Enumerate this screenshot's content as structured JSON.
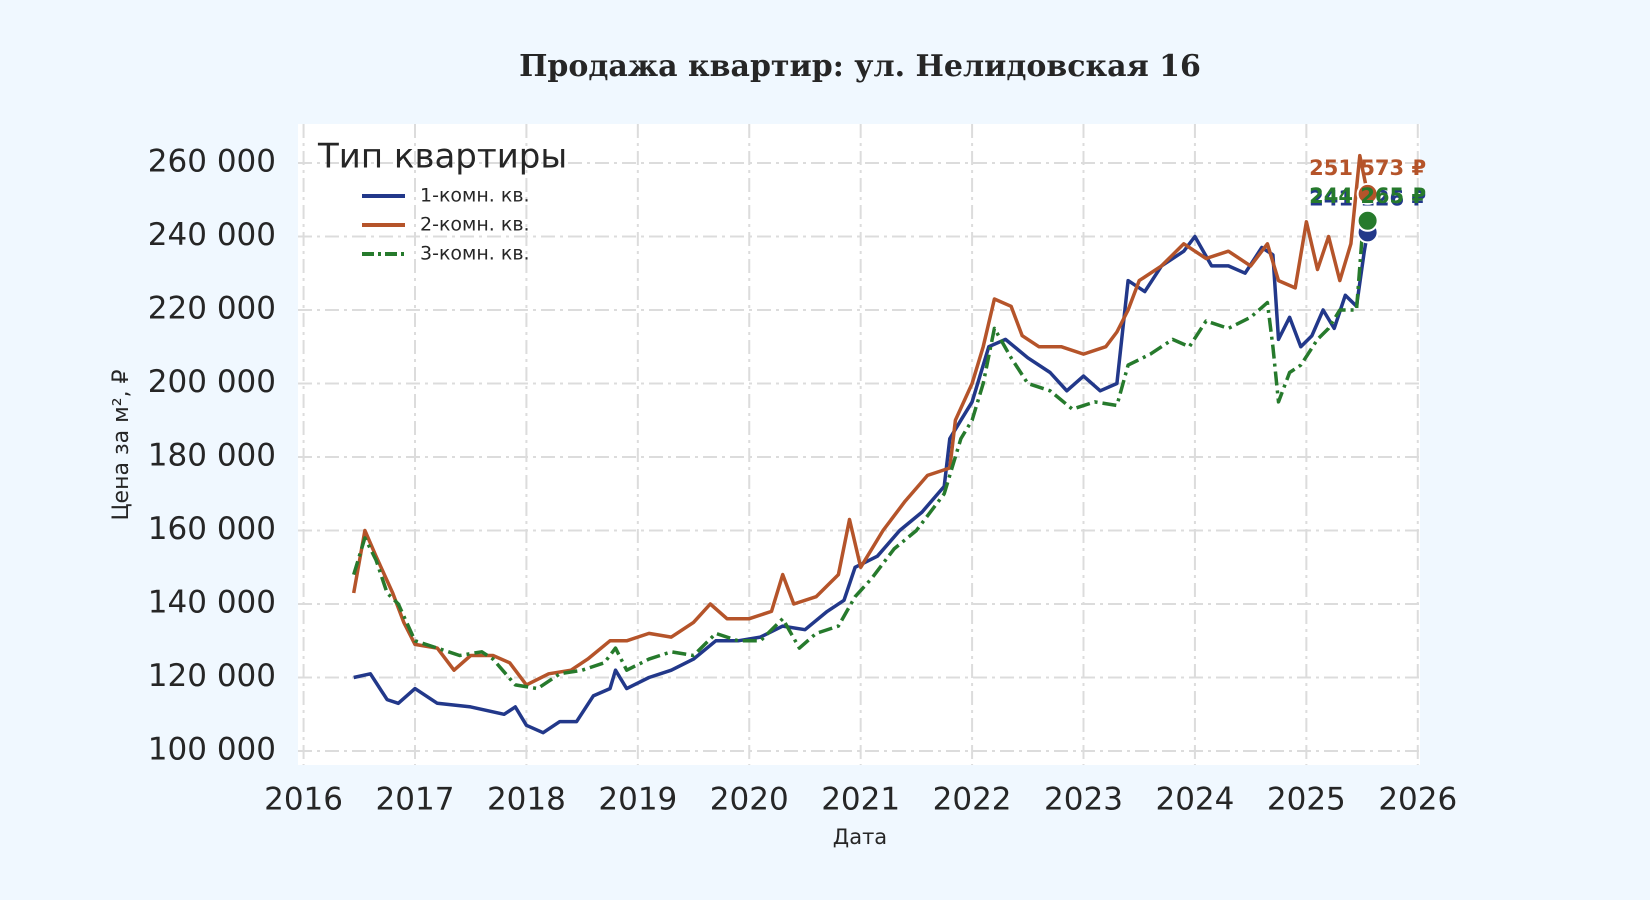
{
  "chart_data": {
    "type": "line",
    "title": "Продажа квартир: ул. Нелидовская 16",
    "xlabel": "Дата",
    "ylabel": "Цена за м², ₽",
    "legend_title": "Тип квартиры",
    "legend": "upper left",
    "grid": true,
    "xlim": [
      2015.95,
      2026.02
    ],
    "xticks": [
      2016,
      2017,
      2018,
      2019,
      2020,
      2021,
      2022,
      2023,
      2024,
      2025,
      2026
    ],
    "ylim": [
      96200,
      270600
    ],
    "yticks": [
      {
        "value": 100000,
        "label": "100 000"
      },
      {
        "value": 120000,
        "label": "120 000"
      },
      {
        "value": 140000,
        "label": "140 000"
      },
      {
        "value": 160000,
        "label": "160 000"
      },
      {
        "value": 180000,
        "label": "180 000"
      },
      {
        "value": 200000,
        "label": "200 000"
      },
      {
        "value": 220000,
        "label": "220 000"
      },
      {
        "value": 240000,
        "label": "240 000"
      },
      {
        "value": 260000,
        "label": "260 000"
      }
    ],
    "series": [
      {
        "name": "1-комн. кв.",
        "color": "#22388a",
        "dash": "solid",
        "x": [
          2016.45,
          2016.6,
          2016.75,
          2016.85,
          2017.0,
          2017.2,
          2017.5,
          2017.8,
          2017.9,
          2018.0,
          2018.15,
          2018.3,
          2018.45,
          2018.6,
          2018.75,
          2018.8,
          2018.9,
          2019.1,
          2019.3,
          2019.5,
          2019.7,
          2019.9,
          2020.1,
          2020.3,
          2020.5,
          2020.7,
          2020.85,
          2020.95,
          2021.15,
          2021.35,
          2021.55,
          2021.75,
          2021.8,
          2021.9,
          2022.0,
          2022.15,
          2022.3,
          2022.5,
          2022.7,
          2022.85,
          2023.0,
          2023.15,
          2023.3,
          2023.4,
          2023.55,
          2023.7,
          2023.9,
          2024.0,
          2024.15,
          2024.3,
          2024.45,
          2024.6,
          2024.7,
          2024.75,
          2024.85,
          2024.95,
          2025.05,
          2025.15,
          2025.25,
          2025.35,
          2025.45,
          2025.52,
          2025.55
        ],
        "values": [
          120000,
          121000,
          114000,
          113000,
          117000,
          113000,
          112000,
          110000,
          112000,
          107000,
          105000,
          108000,
          108000,
          115000,
          117000,
          122000,
          117000,
          120000,
          122000,
          125000,
          130000,
          130000,
          131000,
          134000,
          133000,
          138000,
          141000,
          150000,
          153000,
          160000,
          165000,
          172000,
          185000,
          190000,
          195000,
          210000,
          212000,
          207000,
          203000,
          198000,
          202000,
          198000,
          200000,
          228000,
          225000,
          232000,
          236000,
          240000,
          232000,
          232000,
          230000,
          237000,
          235000,
          212000,
          218000,
          210000,
          213000,
          220000,
          215000,
          224000,
          221000,
          236000,
          241126
        ],
        "value_labels": [
          null,
          null,
          null,
          null,
          null,
          null,
          null,
          null,
          null,
          null,
          null,
          null,
          null,
          null,
          null,
          null,
          null,
          null,
          null,
          null,
          null,
          null,
          null,
          null,
          null,
          null,
          null,
          null,
          null,
          null,
          null,
          null,
          null,
          null,
          null,
          null,
          null,
          null,
          null,
          null,
          null,
          null,
          null,
          null,
          null,
          null,
          null,
          null,
          null,
          null,
          null,
          null,
          null,
          null,
          null,
          null,
          null,
          null,
          null,
          null,
          null,
          null,
          "241 126 ₽"
        ]
      },
      {
        "name": "2-комн. кв.",
        "color": "#b5542a",
        "dash": "solid",
        "x": [
          2016.45,
          2016.55,
          2016.65,
          2016.8,
          2016.9,
          2017.0,
          2017.2,
          2017.35,
          2017.5,
          2017.7,
          2017.85,
          2018.0,
          2018.2,
          2018.4,
          2018.55,
          2018.75,
          2018.9,
          2019.1,
          2019.3,
          2019.5,
          2019.65,
          2019.8,
          2020.0,
          2020.2,
          2020.3,
          2020.4,
          2020.6,
          2020.8,
          2020.9,
          2021.0,
          2021.2,
          2021.4,
          2021.6,
          2021.8,
          2021.85,
          2022.0,
          2022.1,
          2022.2,
          2022.35,
          2022.45,
          2022.6,
          2022.8,
          2023.0,
          2023.2,
          2023.3,
          2023.4,
          2023.5,
          2023.7,
          2023.9,
          2024.1,
          2024.3,
          2024.5,
          2024.65,
          2024.75,
          2024.9,
          2025.0,
          2025.1,
          2025.2,
          2025.3,
          2025.4,
          2025.48,
          2025.55
        ],
        "values": [
          143000,
          160000,
          153000,
          143000,
          135000,
          129000,
          128000,
          122000,
          126000,
          126000,
          124000,
          118000,
          121000,
          122000,
          125000,
          130000,
          130000,
          132000,
          131000,
          135000,
          140000,
          136000,
          136000,
          138000,
          148000,
          140000,
          142000,
          148000,
          163000,
          150000,
          160000,
          168000,
          175000,
          177000,
          190000,
          200000,
          210000,
          223000,
          221000,
          213000,
          210000,
          210000,
          208000,
          210000,
          214000,
          220000,
          228000,
          232000,
          238000,
          234000,
          236000,
          232000,
          238000,
          228000,
          226000,
          244000,
          231000,
          240000,
          228000,
          238000,
          262000,
          251573
        ],
        "value_labels": [
          null,
          null,
          null,
          null,
          null,
          null,
          null,
          null,
          null,
          null,
          null,
          null,
          null,
          null,
          null,
          null,
          null,
          null,
          null,
          null,
          null,
          null,
          null,
          null,
          null,
          null,
          null,
          null,
          null,
          null,
          null,
          null,
          null,
          null,
          null,
          null,
          null,
          null,
          null,
          null,
          null,
          null,
          null,
          null,
          null,
          null,
          null,
          null,
          null,
          null,
          null,
          null,
          null,
          null,
          null,
          null,
          null,
          null,
          null,
          null,
          null,
          "251 573 ₽"
        ]
      },
      {
        "name": "3-комн. кв.",
        "color": "#267a2c",
        "dash": "dashdot",
        "x": [
          2016.45,
          2016.55,
          2016.65,
          2016.75,
          2016.85,
          2017.0,
          2017.2,
          2017.4,
          2017.6,
          2017.7,
          2017.9,
          2018.1,
          2018.3,
          2018.5,
          2018.7,
          2018.8,
          2018.9,
          2019.1,
          2019.3,
          2019.5,
          2019.7,
          2019.9,
          2020.1,
          2020.3,
          2020.45,
          2020.6,
          2020.8,
          2020.95,
          2021.1,
          2021.3,
          2021.5,
          2021.75,
          2021.9,
          2022.0,
          2022.1,
          2022.2,
          2022.35,
          2022.5,
          2022.7,
          2022.9,
          2023.1,
          2023.3,
          2023.4,
          2023.6,
          2023.8,
          2023.95,
          2024.1,
          2024.3,
          2024.5,
          2024.65,
          2024.7,
          2024.75,
          2024.85,
          2024.95,
          2025.1,
          2025.2,
          2025.3,
          2025.45,
          2025.5,
          2025.55
        ],
        "values": [
          148000,
          158000,
          152000,
          143000,
          140000,
          130000,
          128000,
          126000,
          127000,
          125000,
          118000,
          117000,
          121000,
          122000,
          124000,
          128000,
          122000,
          125000,
          127000,
          126000,
          132000,
          130000,
          130000,
          136000,
          128000,
          132000,
          134000,
          142000,
          147000,
          155000,
          160000,
          170000,
          185000,
          190000,
          200000,
          215000,
          207000,
          200000,
          198000,
          193000,
          195000,
          194000,
          205000,
          208000,
          212000,
          210000,
          217000,
          215000,
          218000,
          222000,
          210000,
          195000,
          203000,
          205000,
          212000,
          215000,
          220000,
          220000,
          240000,
          244265
        ],
        "value_labels": [
          null,
          null,
          null,
          null,
          null,
          null,
          null,
          null,
          null,
          null,
          null,
          null,
          null,
          null,
          null,
          null,
          null,
          null,
          null,
          null,
          null,
          null,
          null,
          null,
          null,
          null,
          null,
          null,
          null,
          null,
          null,
          null,
          null,
          null,
          null,
          null,
          null,
          null,
          null,
          null,
          null,
          null,
          null,
          null,
          null,
          null,
          null,
          null,
          null,
          null,
          null,
          null,
          null,
          null,
          null,
          null,
          null,
          null,
          null,
          "244 265 ₽"
        ]
      }
    ]
  }
}
